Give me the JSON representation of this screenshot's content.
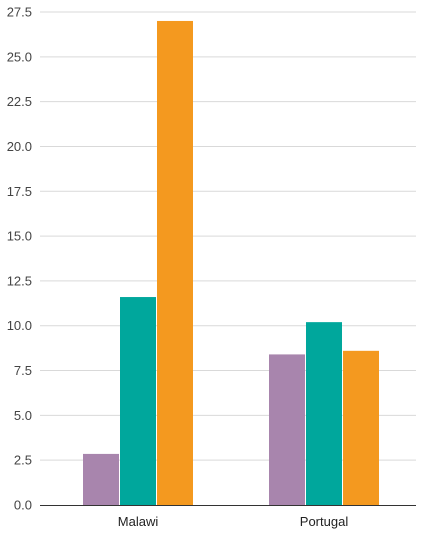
{
  "chart_data": {
    "type": "bar",
    "categories": [
      "Malawi",
      "Portugal"
    ],
    "series": [
      {
        "values": [
          2.85,
          8.4
        ],
        "color": "#a885ad"
      },
      {
        "values": [
          11.6,
          10.2
        ],
        "color": "#00a79c"
      },
      {
        "values": [
          27.0,
          8.6
        ],
        "color": "#f4991f"
      }
    ],
    "ylim": [
      0,
      27.5
    ],
    "yticks": [
      "0.0",
      "2.5",
      "5.0",
      "7.5",
      "10.0",
      "12.5",
      "15.0",
      "17.5",
      "20.0",
      "22.5",
      "25.0",
      "27.5"
    ],
    "grid": true,
    "legend": "none",
    "title": "",
    "xlabel": "",
    "ylabel": ""
  },
  "colors": {
    "grid": "#d9d9d9",
    "axis": "#333333"
  }
}
